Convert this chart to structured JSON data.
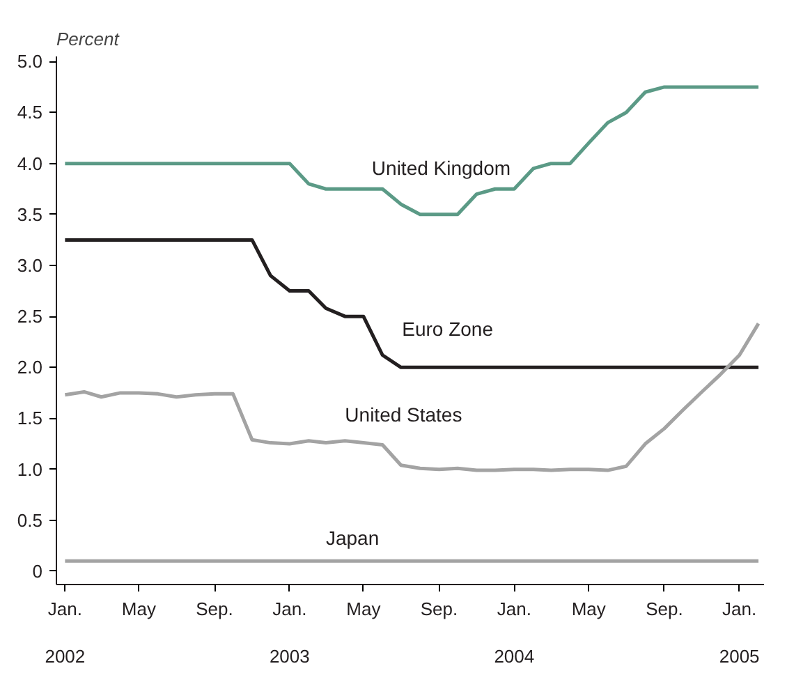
{
  "chart_data": {
    "type": "line",
    "ylabel": "Percent",
    "x": [
      "2002-01",
      "2002-02",
      "2002-03",
      "2002-04",
      "2002-05",
      "2002-06",
      "2002-07",
      "2002-08",
      "2002-09",
      "2002-10",
      "2002-11",
      "2002-12",
      "2003-01",
      "2003-02",
      "2003-03",
      "2003-04",
      "2003-05",
      "2003-06",
      "2003-07",
      "2003-08",
      "2003-09",
      "2003-10",
      "2003-11",
      "2003-12",
      "2004-01",
      "2004-02",
      "2004-03",
      "2004-04",
      "2004-05",
      "2004-06",
      "2004-07",
      "2004-08",
      "2004-09",
      "2004-10",
      "2004-11",
      "2004-12",
      "2005-01",
      "2005-02"
    ],
    "series": [
      {
        "name": "United Kingdom",
        "color": "#5b9a86",
        "values": [
          4.0,
          4.0,
          4.0,
          4.0,
          4.0,
          4.0,
          4.0,
          4.0,
          4.0,
          4.0,
          4.0,
          4.0,
          4.0,
          3.8,
          3.75,
          3.75,
          3.75,
          3.75,
          3.6,
          3.5,
          3.5,
          3.5,
          3.7,
          3.75,
          3.75,
          3.95,
          4.0,
          4.0,
          4.2,
          4.4,
          4.5,
          4.7,
          4.75,
          4.75,
          4.75,
          4.75,
          4.75,
          4.75
        ]
      },
      {
        "name": "Euro Zone",
        "color": "#231f20",
        "values": [
          3.25,
          3.25,
          3.25,
          3.25,
          3.25,
          3.25,
          3.25,
          3.25,
          3.25,
          3.25,
          3.25,
          2.9,
          2.75,
          2.75,
          2.58,
          2.5,
          2.5,
          2.12,
          2.0,
          2.0,
          2.0,
          2.0,
          2.0,
          2.0,
          2.0,
          2.0,
          2.0,
          2.0,
          2.0,
          2.0,
          2.0,
          2.0,
          2.0,
          2.0,
          2.0,
          2.0,
          2.0,
          2.0
        ]
      },
      {
        "name": "United States",
        "color": "#a3a3a3",
        "values": [
          1.73,
          1.76,
          1.71,
          1.75,
          1.75,
          1.74,
          1.71,
          1.73,
          1.74,
          1.74,
          1.29,
          1.26,
          1.25,
          1.28,
          1.26,
          1.28,
          1.26,
          1.24,
          1.04,
          1.01,
          1.0,
          1.01,
          0.99,
          0.99,
          1.0,
          1.0,
          0.99,
          1.0,
          1.0,
          0.99,
          1.03,
          1.25,
          1.4,
          1.58,
          1.76,
          1.93,
          2.12,
          2.43
        ]
      },
      {
        "name": "Japan",
        "color": "#a3a3a3",
        "values": [
          0.1,
          0.1,
          0.1,
          0.1,
          0.1,
          0.1,
          0.1,
          0.1,
          0.1,
          0.1,
          0.1,
          0.1,
          0.1,
          0.1,
          0.1,
          0.1,
          0.1,
          0.1,
          0.1,
          0.1,
          0.1,
          0.1,
          0.1,
          0.1,
          0.1,
          0.1,
          0.1,
          0.1,
          0.1,
          0.1,
          0.1,
          0.1,
          0.1,
          0.1,
          0.1,
          0.1,
          0.1,
          0.1
        ]
      }
    ],
    "xlim": [
      "2001-12-18",
      "2005-02-10"
    ],
    "xticks": [
      {
        "value": "2002-01",
        "label": "Jan."
      },
      {
        "value": "2002-05",
        "label": "May"
      },
      {
        "value": "2002-09",
        "label": "Sep."
      },
      {
        "value": "2003-01",
        "label": "Jan."
      },
      {
        "value": "2003-05",
        "label": "May"
      },
      {
        "value": "2003-09",
        "label": "Sep."
      },
      {
        "value": "2004-01",
        "label": "Jan."
      },
      {
        "value": "2004-05",
        "label": "May"
      },
      {
        "value": "2004-09",
        "label": "Sep."
      },
      {
        "value": "2005-01",
        "label": "Jan."
      }
    ],
    "annotations": [
      "2002",
      "2003",
      "2004",
      "2005"
    ],
    "ylim": [
      -0.13,
      5.05
    ],
    "yticks": [
      0,
      {
        "value": 0.5,
        "label": "0.5"
      },
      {
        "value": 1,
        "label": "1.0"
      },
      {
        "value": 1.5,
        "label": "1.5"
      },
      {
        "value": 2,
        "label": "2.0"
      },
      {
        "value": 2.5,
        "label": "2.5"
      },
      {
        "value": 3,
        "label": "3.0"
      },
      {
        "value": 3.5,
        "label": "3.5"
      },
      {
        "value": 4,
        "label": "4.0"
      },
      {
        "value": 4.5,
        "label": "4.5"
      },
      {
        "value": 5,
        "label": "5.0"
      }
    ],
    "grid": false,
    "marker": "none",
    "line_style": "solid"
  }
}
